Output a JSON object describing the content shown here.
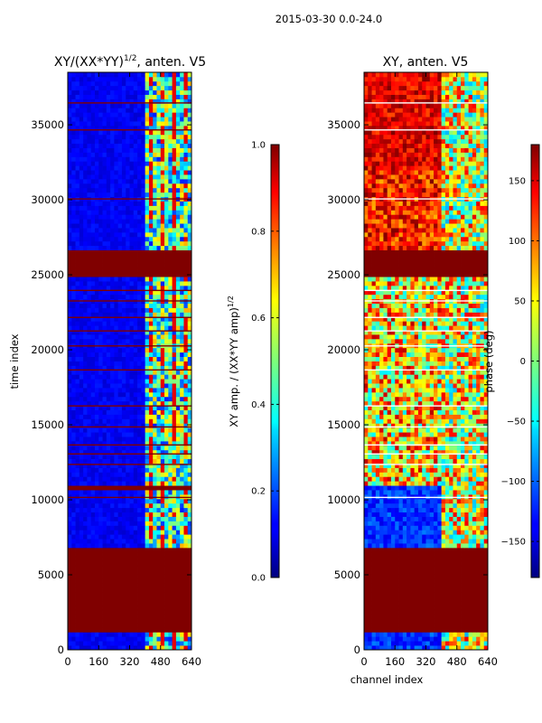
{
  "suptitle": "2015-03-30 0.0-24.0",
  "chart_data": [
    {
      "type": "heatmap",
      "title_main": "XY/(XX*YY)",
      "title_exp": "1/2",
      "title_tail": ", anten. V5",
      "ylabel": "time index",
      "xlabel": "",
      "xlim": [
        0,
        640
      ],
      "ylim": [
        0,
        38500
      ],
      "xticks": [
        0,
        160,
        320,
        480,
        640
      ],
      "yticks": [
        0,
        5000,
        10000,
        15000,
        20000,
        25000,
        30000,
        35000
      ],
      "colorbar": {
        "label_main": "XY amp. / (XX*YY amp)",
        "label_exp": "1/2",
        "range": [
          0.0,
          1.0
        ],
        "ticks": [
          "0.0",
          "0.2",
          "0.4",
          "0.6",
          "0.8",
          "1.0"
        ],
        "tick_values": [
          0.0,
          0.2,
          0.4,
          0.6,
          0.8,
          1.0
        ]
      },
      "saturated_time_bands": [
        [
          1300,
          6800
        ],
        [
          10600,
          10900
        ],
        [
          24800,
          26600
        ]
      ],
      "active_channel_range": [
        400,
        640
      ]
    },
    {
      "type": "heatmap",
      "title": "XY, anten. V5",
      "ylabel": "",
      "xlabel": "channel index",
      "xlim": [
        0,
        640
      ],
      "ylim": [
        0,
        38500
      ],
      "xticks": [
        0,
        160,
        320,
        480,
        640
      ],
      "yticks": [
        0,
        5000,
        10000,
        15000,
        20000,
        25000,
        30000,
        35000
      ],
      "colorbar": {
        "label": "phase (deg)",
        "range": [
          -180,
          180
        ],
        "ticks": [
          "−150",
          "−100",
          "−50",
          "0",
          "50",
          "100",
          "150"
        ],
        "tick_values": [
          -150,
          -100,
          -50,
          0,
          50,
          100,
          150
        ]
      },
      "saturated_time_bands": [
        [
          1300,
          6800
        ],
        [
          24800,
          26600
        ]
      ],
      "active_channel_range": [
        400,
        640
      ]
    }
  ],
  "colors": {
    "dark_red": "#800000",
    "dark_blue": "#00008f",
    "mid_blue": "#0000ff"
  }
}
